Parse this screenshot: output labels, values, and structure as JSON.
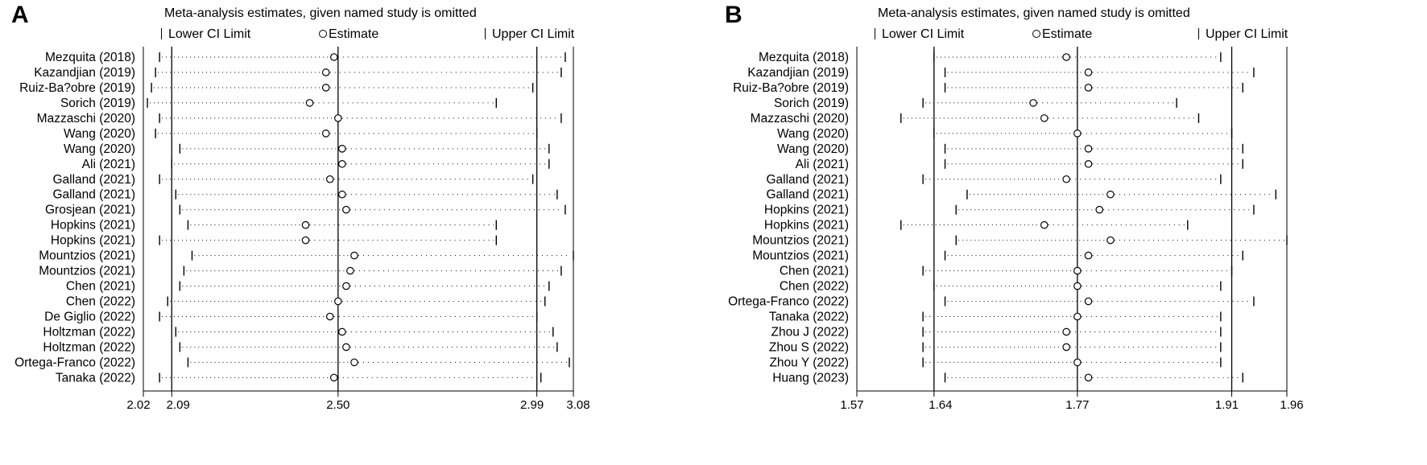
{
  "panels": [
    {
      "letter": "A",
      "title": "Meta-analysis estimates, given named study is omitted",
      "legend": {
        "lower": "Lower CI Limit",
        "estimate": "Estimate",
        "upper": "Upper CI Limit"
      },
      "chart_data": {
        "type": "forest-sensitivity",
        "x_ticks": [
          "2.02",
          "2.09",
          "2.50",
          "2.99",
          "3.08"
        ],
        "xlim": [
          2.02,
          3.08
        ],
        "reference_lines": [
          2.09,
          2.5,
          2.99
        ],
        "studies": [
          {
            "label": "Mezquita (2018)",
            "lower": 2.06,
            "estimate": 2.49,
            "upper": 3.06
          },
          {
            "label": "Kazandjian (2019)",
            "lower": 2.05,
            "estimate": 2.47,
            "upper": 3.05
          },
          {
            "label": "Ruiz-Ba?obre (2019)",
            "lower": 2.04,
            "estimate": 2.47,
            "upper": 2.98
          },
          {
            "label": "Sorich (2019)",
            "lower": 2.03,
            "estimate": 2.43,
            "upper": 2.89
          },
          {
            "label": "Mazzaschi (2020)",
            "lower": 2.06,
            "estimate": 2.5,
            "upper": 3.05
          },
          {
            "label": "Wang (2020)",
            "lower": 2.05,
            "estimate": 2.47,
            "upper": 2.99
          },
          {
            "label": "Wang (2020)",
            "lower": 2.11,
            "estimate": 2.51,
            "upper": 3.02
          },
          {
            "label": "Ali (2021)",
            "lower": 2.09,
            "estimate": 2.51,
            "upper": 3.02
          },
          {
            "label": "Galland (2021)",
            "lower": 2.06,
            "estimate": 2.48,
            "upper": 2.98
          },
          {
            "label": "Galland (2021)",
            "lower": 2.1,
            "estimate": 2.51,
            "upper": 3.04
          },
          {
            "label": "Grosjean (2021)",
            "lower": 2.11,
            "estimate": 2.52,
            "upper": 3.06
          },
          {
            "label": "Hopkins (2021)",
            "lower": 2.13,
            "estimate": 2.42,
            "upper": 2.89
          },
          {
            "label": "Hopkins (2021)",
            "lower": 2.06,
            "estimate": 2.42,
            "upper": 2.89
          },
          {
            "label": "Mountzios (2021)",
            "lower": 2.14,
            "estimate": 2.54,
            "upper": 3.08
          },
          {
            "label": "Mountzios (2021)",
            "lower": 2.12,
            "estimate": 2.53,
            "upper": 3.05
          },
          {
            "label": "Chen (2021)",
            "lower": 2.11,
            "estimate": 2.52,
            "upper": 3.02
          },
          {
            "label": "Chen (2022)",
            "lower": 2.08,
            "estimate": 2.5,
            "upper": 3.01
          },
          {
            "label": "De Giglio (2022)",
            "lower": 2.06,
            "estimate": 2.48,
            "upper": 2.99
          },
          {
            "label": "Holtzman (2022)",
            "lower": 2.1,
            "estimate": 2.51,
            "upper": 3.03
          },
          {
            "label": "Holtzman (2022)",
            "lower": 2.11,
            "estimate": 2.52,
            "upper": 3.04
          },
          {
            "label": "Ortega-Franco (2022)",
            "lower": 2.13,
            "estimate": 2.54,
            "upper": 3.07
          },
          {
            "label": "Tanaka (2022)",
            "lower": 2.06,
            "estimate": 2.49,
            "upper": 3.0
          }
        ]
      }
    },
    {
      "letter": "B",
      "title": "Meta-analysis estimates, given named study is omitted",
      "legend": {
        "lower": "Lower CI Limit",
        "estimate": "Estimate",
        "upper": "Upper CI Limit"
      },
      "chart_data": {
        "type": "forest-sensitivity",
        "x_ticks": [
          "1.57",
          "1.64",
          "1.77",
          "1.91",
          "1.96"
        ],
        "xlim": [
          1.57,
          1.96
        ],
        "reference_lines": [
          1.64,
          1.77,
          1.91
        ],
        "studies": [
          {
            "label": "Mezquita (2018)",
            "lower": 1.64,
            "estimate": 1.76,
            "upper": 1.9
          },
          {
            "label": "Kazandjian (2019)",
            "lower": 1.65,
            "estimate": 1.78,
            "upper": 1.93
          },
          {
            "label": "Ruiz-Ba?obre (2019)",
            "lower": 1.65,
            "estimate": 1.78,
            "upper": 1.92
          },
          {
            "label": "Sorich (2019)",
            "lower": 1.63,
            "estimate": 1.73,
            "upper": 1.86
          },
          {
            "label": "Mazzaschi (2020)",
            "lower": 1.61,
            "estimate": 1.74,
            "upper": 1.88
          },
          {
            "label": "Wang (2020)",
            "lower": 1.64,
            "estimate": 1.77,
            "upper": 1.91
          },
          {
            "label": "Wang (2020)",
            "lower": 1.65,
            "estimate": 1.78,
            "upper": 1.92
          },
          {
            "label": "Ali (2021)",
            "lower": 1.65,
            "estimate": 1.78,
            "upper": 1.92
          },
          {
            "label": "Galland (2021)",
            "lower": 1.63,
            "estimate": 1.76,
            "upper": 1.9
          },
          {
            "label": "Galland (2021)",
            "lower": 1.67,
            "estimate": 1.8,
            "upper": 1.95
          },
          {
            "label": "Hopkins (2021)",
            "lower": 1.66,
            "estimate": 1.79,
            "upper": 1.93
          },
          {
            "label": "Hopkins (2021)",
            "lower": 1.61,
            "estimate": 1.74,
            "upper": 1.87
          },
          {
            "label": "Mountzios (2021)",
            "lower": 1.66,
            "estimate": 1.8,
            "upper": 1.96
          },
          {
            "label": "Mountzios (2021)",
            "lower": 1.65,
            "estimate": 1.78,
            "upper": 1.92
          },
          {
            "label": "Chen (2021)",
            "lower": 1.63,
            "estimate": 1.77,
            "upper": 1.91
          },
          {
            "label": "Chen (2022)",
            "lower": 1.64,
            "estimate": 1.77,
            "upper": 1.9
          },
          {
            "label": "Ortega-Franco (2022)",
            "lower": 1.65,
            "estimate": 1.78,
            "upper": 1.93
          },
          {
            "label": "Tanaka (2022)",
            "lower": 1.63,
            "estimate": 1.77,
            "upper": 1.9
          },
          {
            "label": "Zhou J (2022)",
            "lower": 1.63,
            "estimate": 1.76,
            "upper": 1.9
          },
          {
            "label": "Zhou S (2022)",
            "lower": 1.63,
            "estimate": 1.76,
            "upper": 1.9
          },
          {
            "label": "Zhou Y (2022)",
            "lower": 1.63,
            "estimate": 1.77,
            "upper": 1.9
          },
          {
            "label": "Huang (2023)",
            "lower": 1.65,
            "estimate": 1.78,
            "upper": 1.92
          }
        ]
      }
    }
  ]
}
